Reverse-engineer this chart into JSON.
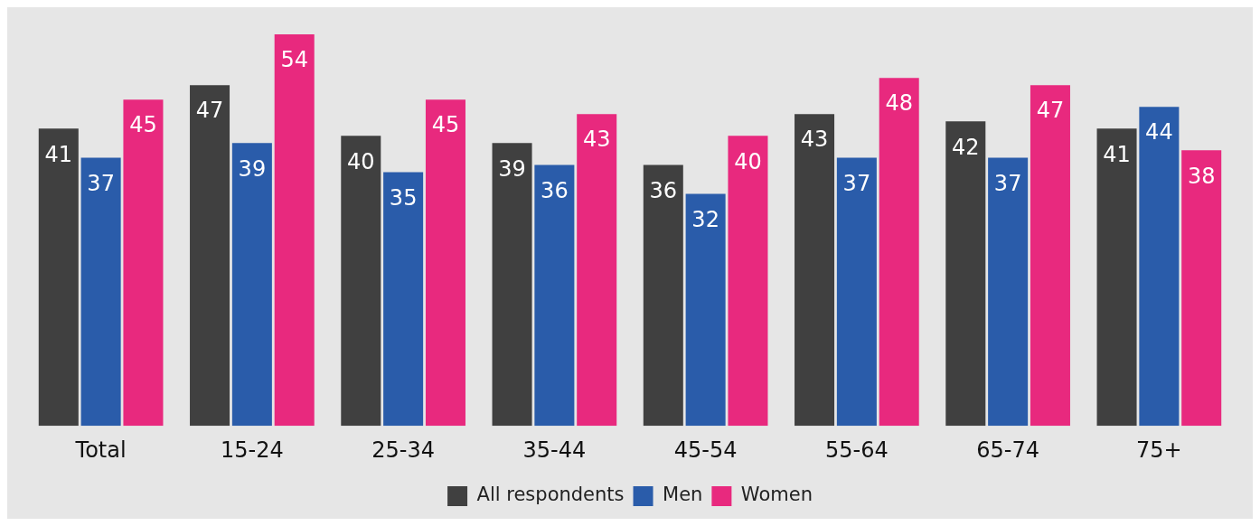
{
  "chart_data": {
    "type": "bar",
    "categories": [
      "Total",
      "15-24",
      "25-34",
      "35-44",
      "45-54",
      "55-64",
      "65-74",
      "75+"
    ],
    "series": [
      {
        "name": "All respondents",
        "color": "#404040",
        "values": [
          41,
          47,
          40,
          39,
          36,
          43,
          42,
          41
        ]
      },
      {
        "name": "Men",
        "color": "#2a5caa",
        "values": [
          37,
          39,
          35,
          36,
          32,
          37,
          37,
          44
        ]
      },
      {
        "name": "Women",
        "color": "#e8297e",
        "values": [
          45,
          54,
          45,
          43,
          40,
          48,
          47,
          38
        ]
      }
    ],
    "ylim": [
      0,
      54
    ],
    "data_labels": true,
    "legend": "bottom",
    "grid": false,
    "tick_labels": "x"
  }
}
